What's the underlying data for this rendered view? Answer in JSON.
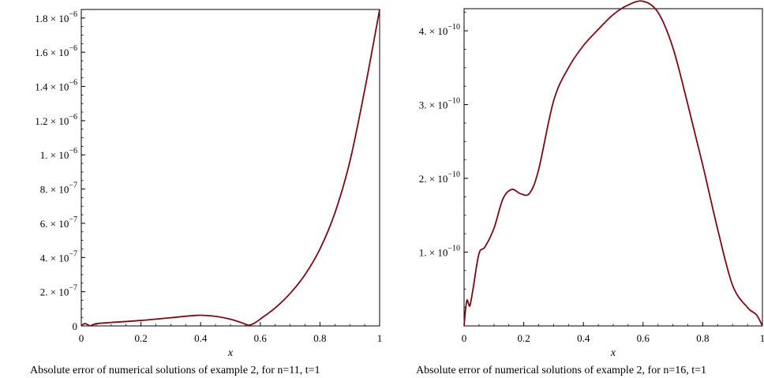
{
  "chart_data": [
    {
      "type": "line",
      "xlabel": "x",
      "ylabel": "",
      "caption": "Absolute error of numerical solutions of example 2, for n=11, t=1",
      "xlim": [
        0,
        1
      ],
      "ylim": [
        0,
        1.85e-06
      ],
      "x_ticks": [
        0,
        0.2,
        0.4,
        0.6,
        0.8,
        1
      ],
      "x_tick_labels": [
        "0",
        "0.2",
        "0.4",
        "0.6",
        "0.8",
        "1"
      ],
      "y_ticks": [
        0,
        2e-07,
        4e-07,
        6e-07,
        8e-07,
        1e-06,
        1.2e-06,
        1.4e-06,
        1.6e-06,
        1.8e-06
      ],
      "y_tick_labels": [
        {
          "m": "0",
          "e": ""
        },
        {
          "m": "2. × 10",
          "e": "−7"
        },
        {
          "m": "4. × 10",
          "e": "−7"
        },
        {
          "m": "6. × 10",
          "e": "−7"
        },
        {
          "m": "8. × 10",
          "e": "−7"
        },
        {
          "m": "1. × 10",
          "e": "−6"
        },
        {
          "m": "1.2 × 10",
          "e": "−6"
        },
        {
          "m": "1.4 × 10",
          "e": "−6"
        },
        {
          "m": "1.6 × 10",
          "e": "−6"
        },
        {
          "m": "1.8 × 10",
          "e": "−6"
        }
      ],
      "color": "#7a0a14",
      "x": [
        0,
        0.01,
        0.02,
        0.03,
        0.05,
        0.1,
        0.2,
        0.3,
        0.39,
        0.45,
        0.5,
        0.55,
        0.56,
        0.58,
        0.6,
        0.65,
        0.7,
        0.75,
        0.8,
        0.85,
        0.9,
        0.95,
        1.0
      ],
      "y": [
        0,
        1.3e-08,
        9e-09,
        1e-09,
        1.3e-08,
        2e-08,
        3.2e-08,
        4.8e-08,
        6.2e-08,
        5.6e-08,
        3.9e-08,
        1.1e-08,
        4e-09,
        1.6e-08,
        4e-08,
        1.05e-07,
        1.9e-07,
        3e-07,
        4.5e-07,
        6.6e-07,
        9.6e-07,
        1.38e-06,
        1.85e-06
      ]
    },
    {
      "type": "line",
      "xlabel": "x",
      "ylabel": "",
      "caption": "Absolute error of numerical solutions of example 2, for n=16, t=1",
      "xlim": [
        0,
        1
      ],
      "ylim": [
        0,
        4.3e-10
      ],
      "x_ticks": [
        0,
        0.2,
        0.4,
        0.6,
        0.8,
        1
      ],
      "x_tick_labels": [
        "0",
        "0.2",
        "0.4",
        "0.6",
        "0.8",
        "1"
      ],
      "y_ticks": [
        1e-10,
        2e-10,
        3e-10,
        4e-10
      ],
      "y_tick_labels": [
        {
          "m": "1. × 10",
          "e": "−10"
        },
        {
          "m": "2. × 10",
          "e": "−10"
        },
        {
          "m": "3. × 10",
          "e": "−10"
        },
        {
          "m": "4. × 10",
          "e": "−10"
        }
      ],
      "color": "#7a0a14",
      "x": [
        0,
        0.005,
        0.01,
        0.015,
        0.02,
        0.03,
        0.05,
        0.07,
        0.1,
        0.13,
        0.16,
        0.19,
        0.22,
        0.25,
        0.3,
        0.35,
        0.4,
        0.45,
        0.5,
        0.55,
        0.6,
        0.65,
        0.7,
        0.75,
        0.8,
        0.85,
        0.9,
        0.95,
        0.98,
        1.0
      ],
      "y": [
        0,
        2.3e-11,
        3.5e-11,
        3e-11,
        2.8e-11,
        5e-11,
        9.8e-11,
        1.07e-10,
        1.32e-10,
        1.72e-10,
        1.85e-10,
        1.79e-10,
        1.8e-10,
        2.12e-10,
        3.05e-10,
        3.5e-10,
        3.8e-10,
        4.02e-10,
        4.22e-10,
        4.35e-10,
        4.4e-10,
        4.25e-10,
        3.77e-10,
        3e-10,
        2.18e-10,
        1.31e-10,
        5.5e-11,
        2.5e-11,
        1.5e-11,
        0
      ]
    }
  ]
}
